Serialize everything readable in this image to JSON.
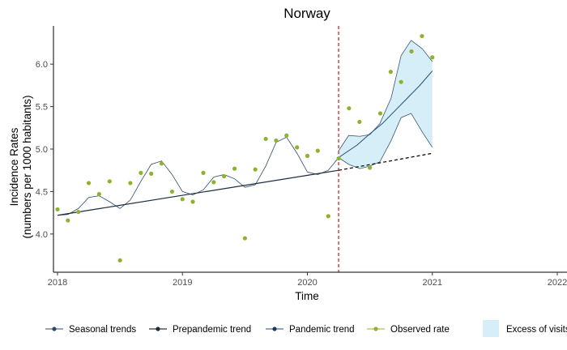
{
  "chart_data": {
    "type": "line",
    "title": "Norway",
    "xlabel": "Time",
    "ylabel_line1": "Incidence Rates",
    "ylabel_line2": "(numbers per 1000 habitants)",
    "xlim": [
      2018,
      2022
    ],
    "ylim": [
      3.55,
      6.45
    ],
    "x_ticks": [
      {
        "value": 2018,
        "label": "2018"
      },
      {
        "value": 2019,
        "label": "2019"
      },
      {
        "value": 2020,
        "label": "2020"
      },
      {
        "value": 2021,
        "label": "2021"
      },
      {
        "value": 2022,
        "label": "2022"
      }
    ],
    "y_ticks": [
      {
        "value": 4.0,
        "label": "4.0"
      },
      {
        "value": 4.5,
        "label": "4.5"
      },
      {
        "value": 5.0,
        "label": "5.0"
      },
      {
        "value": 5.5,
        "label": "5.5"
      },
      {
        "value": 6.0,
        "label": "6.0"
      }
    ],
    "pandemic_start": 2020.25,
    "colors": {
      "seasonal": "#2c4a6b",
      "prepandemic": "#000000",
      "pandemic": "#1f4e79",
      "observed": "#8db32e",
      "excess_fill": "#d6eef8",
      "pandemic_marker": "#cc0000"
    },
    "series": [
      {
        "key": "seasonal",
        "name": "Seasonal trends",
        "x": [
          2018.0,
          2018.083,
          2018.167,
          2018.25,
          2018.333,
          2018.417,
          2018.5,
          2018.583,
          2018.667,
          2018.75,
          2018.833,
          2018.917,
          2019.0,
          2019.083,
          2019.167,
          2019.25,
          2019.333,
          2019.417,
          2019.5,
          2019.583,
          2019.667,
          2019.75,
          2019.833,
          2019.917,
          2020.0,
          2020.083,
          2020.167,
          2020.25
        ],
        "y": [
          4.22,
          4.23,
          4.3,
          4.43,
          4.45,
          4.38,
          4.3,
          4.4,
          4.62,
          4.82,
          4.86,
          4.7,
          4.5,
          4.46,
          4.52,
          4.67,
          4.7,
          4.65,
          4.55,
          4.58,
          4.8,
          5.08,
          5.14,
          4.95,
          4.73,
          4.7,
          4.75,
          4.9
        ]
      },
      {
        "key": "prepandemic",
        "name": "Prepandemic trend",
        "x": [
          2018.0,
          2020.25,
          2021.0
        ],
        "y": [
          4.22,
          4.75,
          4.95
        ]
      },
      {
        "key": "pandemic",
        "name": "Pandemic trend",
        "x": [
          2020.25,
          2020.4,
          2020.5,
          2020.6,
          2020.7,
          2020.8,
          2020.9,
          2021.0
        ],
        "y": [
          4.9,
          5.05,
          5.18,
          5.3,
          5.45,
          5.6,
          5.75,
          5.92
        ]
      },
      {
        "key": "observed",
        "name": "Observed rate",
        "x": [
          2018.0,
          2018.083,
          2018.167,
          2018.25,
          2018.333,
          2018.417,
          2018.5,
          2018.583,
          2018.667,
          2018.75,
          2018.833,
          2018.917,
          2019.0,
          2019.083,
          2019.167,
          2019.25,
          2019.333,
          2019.417,
          2019.5,
          2019.583,
          2019.667,
          2019.75,
          2019.833,
          2019.917,
          2020.0,
          2020.083,
          2020.167,
          2020.25,
          2020.333,
          2020.417,
          2020.5,
          2020.583,
          2020.667,
          2020.75,
          2020.833,
          2020.917,
          2021.0
        ],
        "y": [
          4.29,
          4.16,
          4.26,
          4.6,
          4.47,
          4.62,
          3.69,
          4.6,
          4.72,
          4.71,
          4.83,
          4.5,
          4.41,
          4.38,
          4.72,
          4.61,
          4.68,
          4.77,
          3.95,
          4.76,
          5.12,
          5.1,
          5.16,
          5.02,
          4.92,
          4.98,
          4.21,
          4.89,
          5.48,
          5.32,
          4.78,
          5.42,
          5.91,
          5.79,
          6.15,
          6.33,
          6.08
        ]
      }
    ],
    "excess_band": {
      "name": "Excess of visits",
      "x": [
        2020.25,
        2020.33,
        2020.42,
        2020.5,
        2020.58,
        2020.67,
        2020.75,
        2020.83,
        2020.92,
        2021.0
      ],
      "upper": [
        4.98,
        5.16,
        5.15,
        5.17,
        5.3,
        5.6,
        6.1,
        6.28,
        6.18,
        6.03
      ],
      "lower": [
        4.9,
        4.82,
        4.77,
        4.8,
        4.85,
        5.1,
        5.37,
        5.42,
        5.2,
        5.02
      ]
    },
    "legend_position": "bottom"
  }
}
